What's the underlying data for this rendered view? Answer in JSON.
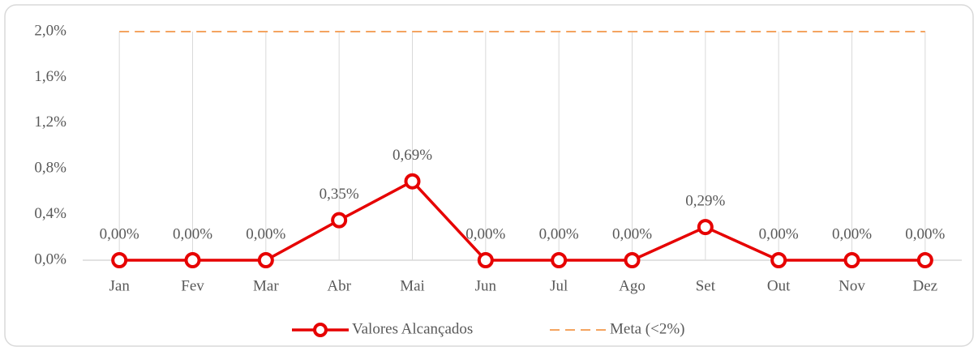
{
  "chart_data": {
    "type": "line",
    "categories": [
      "Jan",
      "Fev",
      "Mar",
      "Abr",
      "Mai",
      "Jun",
      "Jul",
      "Ago",
      "Set",
      "Out",
      "Nov",
      "Dez"
    ],
    "series": [
      {
        "name": "Valores Alcançados",
        "color": "#e60000",
        "values": [
          0,
          0,
          0,
          0.35,
          0.69,
          0,
          0,
          0,
          0.29,
          0,
          0,
          0
        ],
        "value_labels": [
          "0,00%",
          "0,00%",
          "0,00%",
          "0,35%",
          "0,69%",
          "0,00%",
          "0,00%",
          "0,00%",
          "0,29%",
          "0,00%",
          "0,00%",
          "0,00%"
        ]
      },
      {
        "name": "Meta (<2%)",
        "color": "#f4a460",
        "dashed": true,
        "values": [
          2,
          2,
          2,
          2,
          2,
          2,
          2,
          2,
          2,
          2,
          2,
          2
        ]
      }
    ],
    "ylim": [
      0,
      2
    ],
    "yticks": [
      {
        "value": 0,
        "label": "0,0%"
      },
      {
        "value": 0.4,
        "label": "0,4%"
      },
      {
        "value": 0.8,
        "label": "0,8%"
      },
      {
        "value": 1.2,
        "label": "1,2%"
      },
      {
        "value": 1.6,
        "label": "1,6%"
      },
      {
        "value": 2,
        "label": "2,0%"
      }
    ],
    "grid": "x",
    "legend": "bottom"
  }
}
